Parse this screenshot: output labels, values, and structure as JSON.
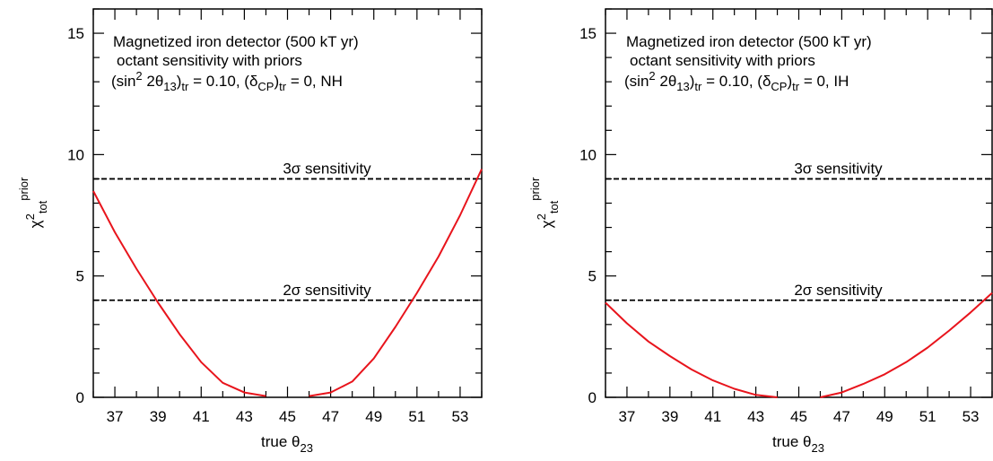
{
  "chart_data": [
    {
      "type": "line",
      "panel": "NH",
      "xlabel": "true θ23",
      "ylabel": "χ2 tot prior",
      "xlim": [
        36,
        54
      ],
      "ylim": [
        0,
        16
      ],
      "x_ticks": [
        37,
        39,
        41,
        43,
        45,
        47,
        49,
        51,
        53
      ],
      "y_ticks": [
        0,
        5,
        10,
        15
      ],
      "grid": false,
      "annotation_lines": [
        "Magnetized iron detector (500 kT yr)",
        "octant sensitivity with priors",
        "(sin2 2θ13)tr = 0.10, (δCP)tr = 0, NH"
      ],
      "reference_lines": [
        {
          "label": "3σ sensitivity",
          "y": 9
        },
        {
          "label": "2σ sensitivity",
          "y": 4
        }
      ],
      "curve_color": "#e8141c",
      "series": [
        {
          "x": [
            36,
            37,
            38,
            39,
            40,
            41,
            42,
            43,
            44
          ],
          "values": [
            8.5,
            6.8,
            5.3,
            3.9,
            2.6,
            1.45,
            0.6,
            0.2,
            0.05
          ]
        },
        {
          "x": [
            46,
            47,
            48,
            49,
            50,
            51,
            52,
            53,
            54
          ],
          "values": [
            0.05,
            0.2,
            0.65,
            1.6,
            2.9,
            4.3,
            5.8,
            7.5,
            9.4
          ]
        }
      ]
    },
    {
      "type": "line",
      "panel": "IH",
      "xlabel": "true θ23",
      "ylabel": "χ2 tot prior",
      "xlim": [
        36,
        54
      ],
      "ylim": [
        0,
        16
      ],
      "x_ticks": [
        37,
        39,
        41,
        43,
        45,
        47,
        49,
        51,
        53
      ],
      "y_ticks": [
        0,
        5,
        10,
        15
      ],
      "grid": false,
      "annotation_lines": [
        "Magnetized iron detector (500 kT yr)",
        "octant sensitivity with priors",
        "(sin2 2θ13)tr = 0.10, (δCP)tr = 0, IH"
      ],
      "reference_lines": [
        {
          "label": "3σ sensitivity",
          "y": 9
        },
        {
          "label": "2σ sensitivity",
          "y": 4
        }
      ],
      "curve_color": "#e8141c",
      "series": [
        {
          "x": [
            36,
            37,
            38,
            39,
            40,
            41,
            42,
            43,
            44
          ],
          "values": [
            3.9,
            3.05,
            2.3,
            1.7,
            1.15,
            0.7,
            0.35,
            0.1,
            0.0
          ]
        },
        {
          "x": [
            46,
            47,
            48,
            49,
            50,
            51,
            52,
            53,
            54
          ],
          "values": [
            0.0,
            0.2,
            0.55,
            0.95,
            1.45,
            2.05,
            2.75,
            3.5,
            4.3
          ]
        }
      ]
    }
  ]
}
